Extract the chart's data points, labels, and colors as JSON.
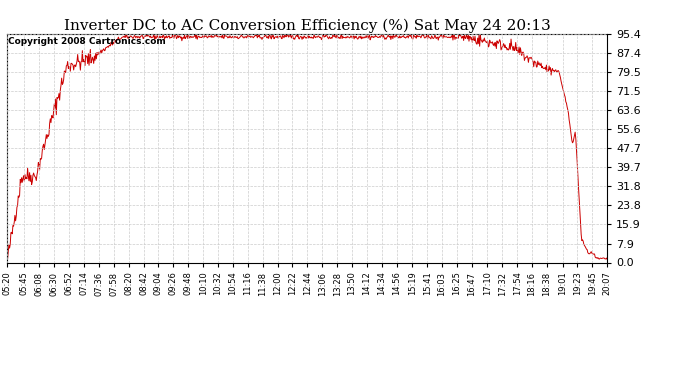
{
  "title": "Inverter DC to AC Conversion Efficiency (%) Sat May 24 20:13",
  "copyright": "Copyright 2008 Cartronics.com",
  "yticks": [
    0.0,
    7.9,
    15.9,
    23.8,
    31.8,
    39.7,
    47.7,
    55.6,
    63.6,
    71.5,
    79.5,
    87.4,
    95.4
  ],
  "line_color": "#cc0000",
  "bg_color": "#ffffff",
  "grid_color": "#cccccc",
  "plot_bg_color": "#ffffff",
  "xtick_labels": [
    "05:20",
    "05:45",
    "06:08",
    "06:30",
    "06:52",
    "07:14",
    "07:36",
    "07:58",
    "08:20",
    "08:42",
    "09:04",
    "09:26",
    "09:48",
    "10:10",
    "10:32",
    "10:54",
    "11:16",
    "11:38",
    "12:00",
    "12:22",
    "12:44",
    "13:06",
    "13:28",
    "13:50",
    "14:12",
    "14:34",
    "14:56",
    "15:19",
    "15:41",
    "16:03",
    "16:25",
    "16:47",
    "17:10",
    "17:32",
    "17:54",
    "18:16",
    "18:38",
    "19:01",
    "19:23",
    "19:45",
    "20:07"
  ],
  "ylim": [
    0.0,
    95.4
  ],
  "title_fontsize": 11,
  "copyright_fontsize": 6.5,
  "ytick_fontsize": 8,
  "xtick_fontsize": 6
}
